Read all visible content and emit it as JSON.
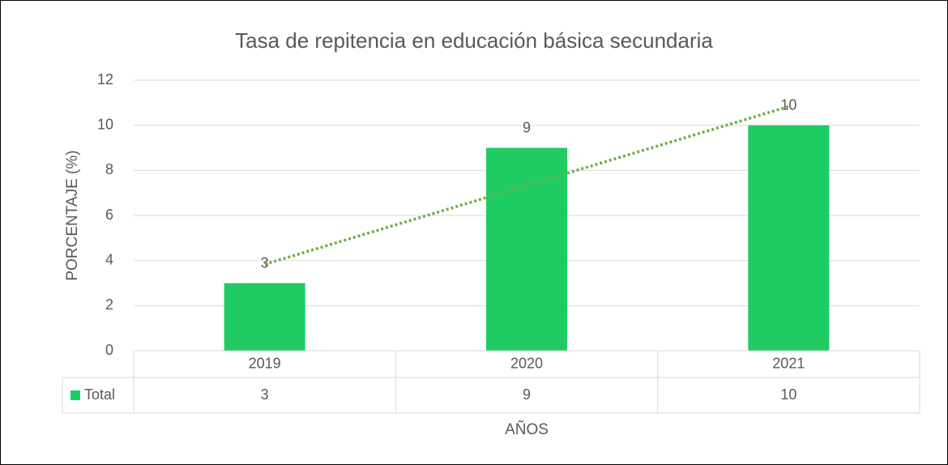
{
  "chart_data": {
    "type": "bar",
    "title": "Tasa de repitencia en educación básica secundaria",
    "y_label": "PORCENTAJE (%)",
    "x_label": "AÑOS",
    "categories": [
      "2019",
      "2020",
      "2021"
    ],
    "series": [
      {
        "name": "Total",
        "color": "#1fcc64",
        "values": [
          3,
          9,
          10
        ]
      }
    ],
    "ylim": [
      0,
      12
    ],
    "yticks": [
      0,
      2,
      4,
      6,
      8,
      10,
      12
    ],
    "grid": true,
    "trendline": "linear",
    "trendline_color": "#70ad47",
    "data_table": true
  }
}
